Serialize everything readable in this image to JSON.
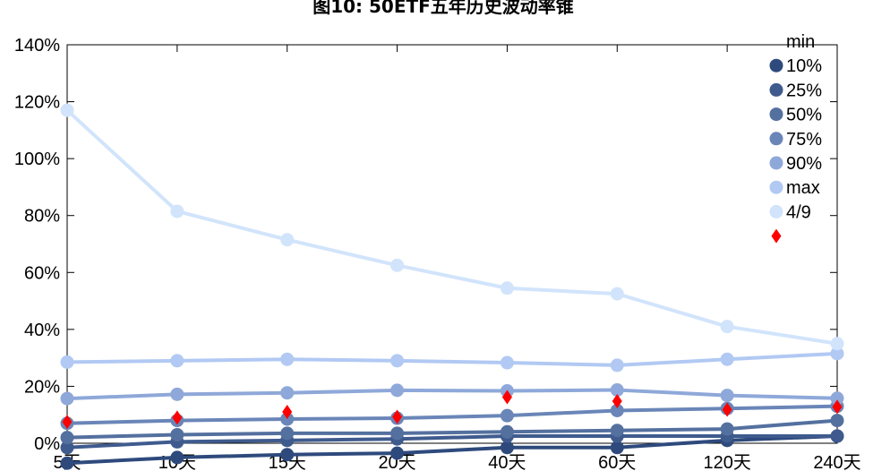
{
  "chart_data": {
    "type": "line",
    "title": "图10: 50ETF五年历史波动率锥",
    "categories": [
      "5天",
      "10天",
      "15天",
      "20天",
      "40天",
      "60天",
      "120天",
      "240天"
    ],
    "ylim": [
      0,
      1.4
    ],
    "y_ticks": [
      "0%",
      "20%",
      "40%",
      "60%",
      "80%",
      "100%",
      "120%",
      "140%"
    ],
    "y_tick_values": [
      0,
      0.2,
      0.4,
      0.6,
      0.8,
      1.0,
      1.2,
      1.4
    ],
    "grid": false,
    "legend_position": "top-right",
    "series": [
      {
        "name": "min",
        "color": "#2e4a7d",
        "marker": "circle",
        "values": [
          -0.07,
          -0.05,
          -0.04,
          -0.035,
          -0.015,
          -0.015,
          0.01,
          0.025
        ]
      },
      {
        "name": "10%",
        "color": "#3f5b8e",
        "marker": "circle",
        "values": [
          -0.015,
          0.005,
          0.01,
          0.015,
          0.025,
          0.025,
          0.025,
          0.025
        ]
      },
      {
        "name": "25%",
        "color": "#54709f",
        "marker": "circle",
        "values": [
          0.02,
          0.03,
          0.035,
          0.035,
          0.04,
          0.045,
          0.05,
          0.08
        ]
      },
      {
        "name": "50%",
        "color": "#6a86b8",
        "marker": "circle",
        "values": [
          0.07,
          0.08,
          0.085,
          0.088,
          0.097,
          0.115,
          0.122,
          0.13
        ]
      },
      {
        "name": "75%",
        "color": "#8ea8d9",
        "marker": "circle",
        "values": [
          0.157,
          0.172,
          0.177,
          0.186,
          0.184,
          0.187,
          0.168,
          0.158
        ]
      },
      {
        "name": "90%",
        "color": "#b1c9f3",
        "marker": "circle",
        "values": [
          0.285,
          0.29,
          0.295,
          0.29,
          0.283,
          0.274,
          0.295,
          0.315
        ]
      },
      {
        "name": "max",
        "color": "#d1e4fb",
        "marker": "circle",
        "values": [
          1.17,
          0.815,
          0.715,
          0.625,
          0.545,
          0.525,
          0.41,
          0.35
        ]
      },
      {
        "name": "4/9",
        "color": "#ff0000",
        "marker": "diamond",
        "line": false,
        "values": [
          0.075,
          0.09,
          0.11,
          0.093,
          0.162,
          0.148,
          0.118,
          0.128
        ]
      }
    ]
  }
}
